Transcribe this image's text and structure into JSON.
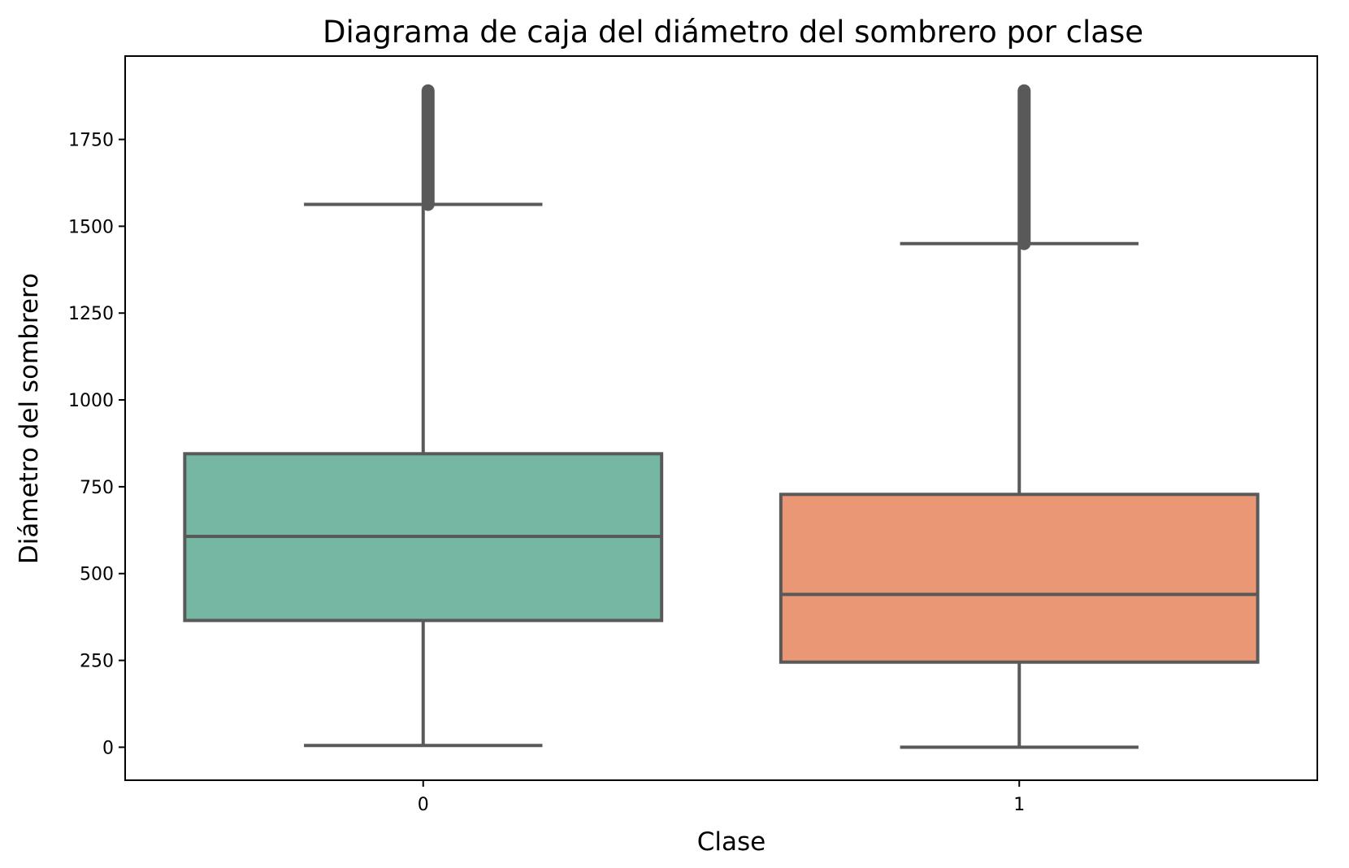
{
  "chart_data": {
    "type": "boxplot",
    "title": "Diagrama de caja del diámetro del sombrero por clase",
    "xlabel": "Clase",
    "ylabel": "Diámetro del sombrero",
    "categories": [
      "0",
      "1"
    ],
    "ylim": [
      -95,
      1990
    ],
    "yticks": [
      0,
      250,
      500,
      750,
      1000,
      1250,
      1500,
      1750
    ],
    "grid": false,
    "legend": "none",
    "boxes": [
      {
        "category": "0",
        "whisker_low": 5,
        "q1": 365,
        "median": 607,
        "q3": 845,
        "whisker_high": 1563,
        "outliers_from": 1563,
        "outliers_to": 1890,
        "color": "#75b7a2"
      },
      {
        "category": "1",
        "whisker_low": 0,
        "q1": 245,
        "median": 440,
        "q3": 728,
        "whisker_high": 1450,
        "outliers_from": 1450,
        "outliers_to": 1890,
        "color": "#e99775"
      }
    ],
    "line_color": "#595959"
  }
}
